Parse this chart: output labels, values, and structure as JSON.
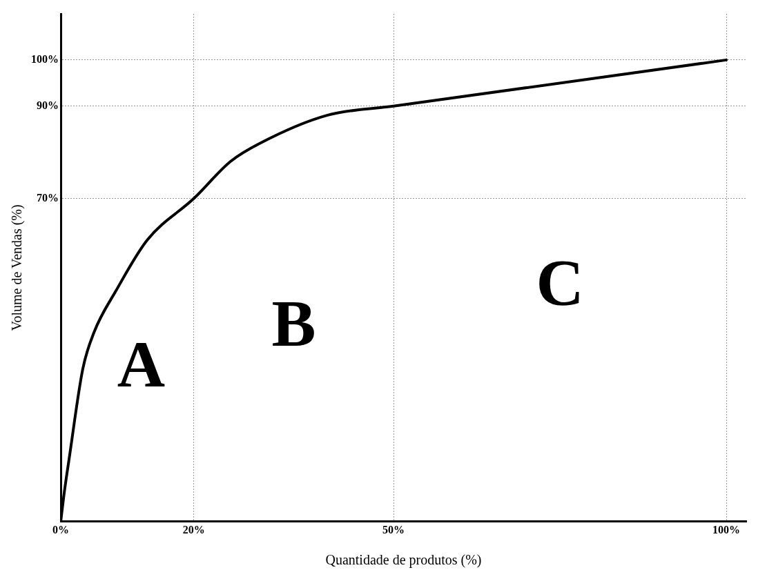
{
  "chart_data": {
    "type": "line",
    "xlabel": "Quantidade de produtos (%)",
    "ylabel": "Volume de Vendas (%)",
    "x": [
      0,
      0.5,
      1.3,
      3.3,
      5,
      8.3,
      13,
      20,
      25.5,
      30,
      40,
      50,
      100
    ],
    "series": [
      {
        "color": "#000000",
        "values": [
          0,
          6,
          14,
          33,
          41,
          50,
          61,
          70,
          78,
          82,
          88,
          90,
          100
        ]
      }
    ],
    "xlim": [
      0,
      103
    ],
    "ylim": [
      0,
      110
    ],
    "xticks": [
      {
        "value": 0,
        "label": "0%"
      },
      {
        "value": 20,
        "label": "20%"
      },
      {
        "value": 50,
        "label": "50%"
      },
      {
        "value": 100,
        "label": "100%"
      }
    ],
    "yticks": [
      {
        "value": 70,
        "label": "70%"
      },
      {
        "value": 90,
        "label": "90%"
      },
      {
        "value": 100,
        "label": "100%"
      }
    ],
    "grid": true,
    "line_style": "solid",
    "marker": "none",
    "legend": false,
    "annotations": [
      "A",
      "B",
      "C"
    ]
  }
}
